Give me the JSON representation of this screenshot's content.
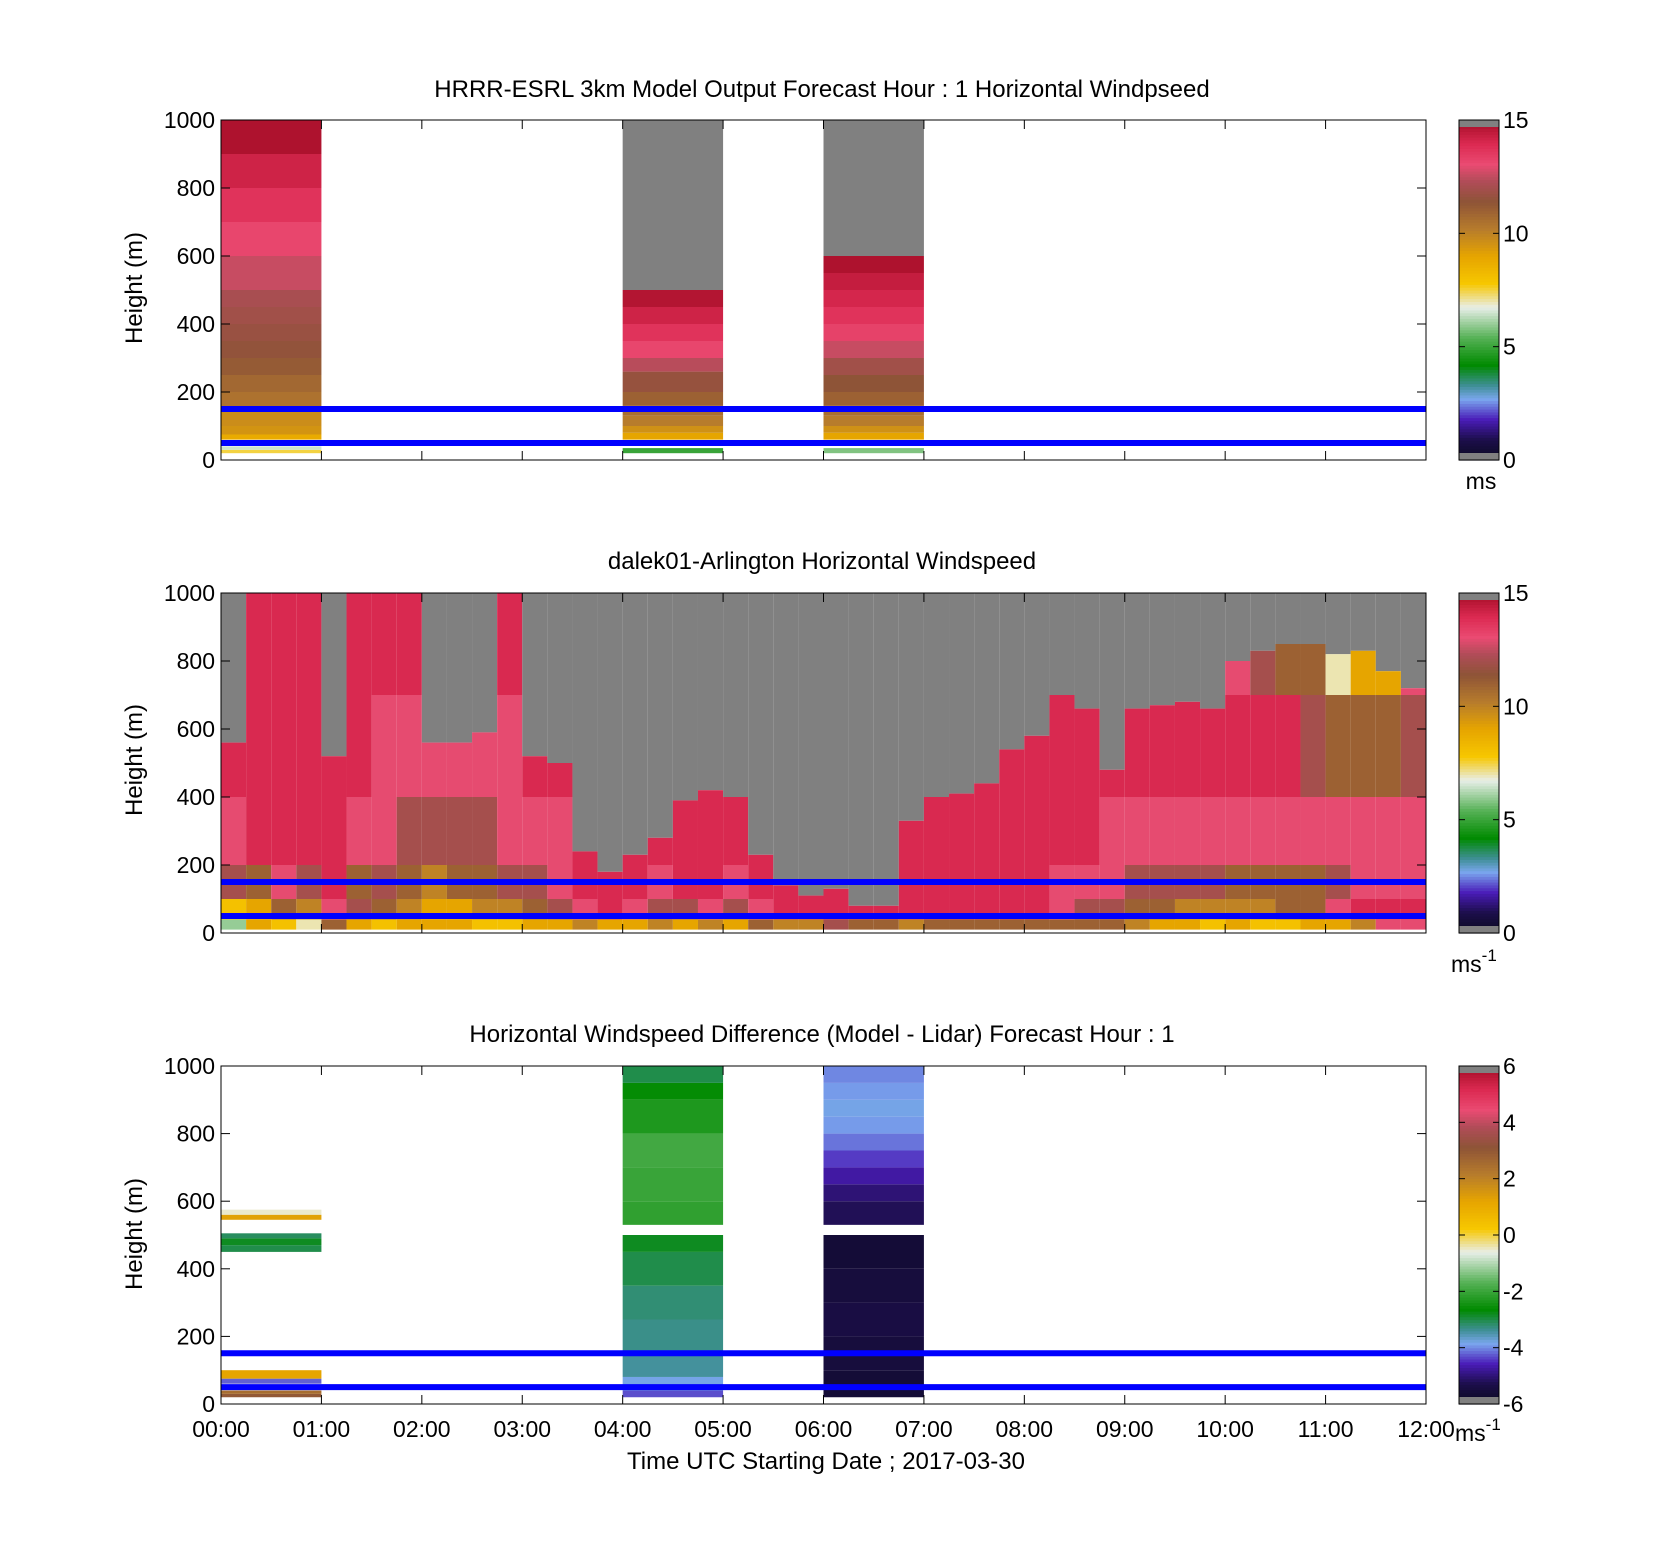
{
  "figure": {
    "xlabel": "Time UTC  Starting Date ; 2017-03-30",
    "x_ticks": [
      "00:00",
      "01:00",
      "02:00",
      "03:00",
      "04:00",
      "05:00",
      "06:00",
      "07:00",
      "08:00",
      "09:00",
      "10:00",
      "11:00",
      "12:00"
    ],
    "missing_color": "#808080",
    "overlay_line_color": "#0000ff"
  },
  "chart_data": [
    {
      "type": "heatmap",
      "title": "HRRR-ESRL 3km Model Output   Forecast Hour : 1 Horizontal Windpseed",
      "ylabel": "Height (m)",
      "y_ticks": [
        "0",
        "200",
        "400",
        "600",
        "800",
        "1000"
      ],
      "xlim_hours": [
        0,
        12
      ],
      "ylim": [
        0,
        1000
      ],
      "colorbar": {
        "ticks": [
          "0",
          "5",
          "10",
          "15"
        ],
        "range": [
          0,
          15
        ],
        "unit": "ms"
      },
      "overlay_lines_m": [
        50,
        150
      ],
      "columns": [
        {
          "start_hour": 0,
          "end_hour": 1,
          "levels": [
            {
              "bottom": 20,
              "top": 30,
              "value": 7.5
            },
            {
              "bottom": 30,
              "top": 40,
              "value": 6.5
            },
            {
              "bottom": 60,
              "top": 75,
              "value": 8.8
            },
            {
              "bottom": 75,
              "top": 100,
              "value": 9.5
            },
            {
              "bottom": 100,
              "top": 150,
              "value": 9.7
            },
            {
              "bottom": 150,
              "top": 200,
              "value": 10.5
            },
            {
              "bottom": 200,
              "top": 250,
              "value": 10.8
            },
            {
              "bottom": 250,
              "top": 300,
              "value": 11.2
            },
            {
              "bottom": 300,
              "top": 350,
              "value": 11.5
            },
            {
              "bottom": 350,
              "top": 400,
              "value": 11.7
            },
            {
              "bottom": 400,
              "top": 450,
              "value": 11.9
            },
            {
              "bottom": 450,
              "top": 500,
              "value": 12.1
            },
            {
              "bottom": 500,
              "top": 600,
              "value": 12.6
            },
            {
              "bottom": 600,
              "top": 700,
              "value": 13.2
            },
            {
              "bottom": 700,
              "top": 800,
              "value": 13.7
            },
            {
              "bottom": 800,
              "top": 900,
              "value": 14.2
            },
            {
              "bottom": 900,
              "top": 1000,
              "value": 14.8
            }
          ]
        },
        {
          "start_hour": 4,
          "end_hour": 5,
          "levels": [
            {
              "bottom": 20,
              "top": 35,
              "value": 5.0
            },
            {
              "bottom": 60,
              "top": 80,
              "value": 9.0
            },
            {
              "bottom": 80,
              "top": 100,
              "value": 9.6
            },
            {
              "bottom": 100,
              "top": 130,
              "value": 10.2
            },
            {
              "bottom": 130,
              "top": 160,
              "value": 10.6
            },
            {
              "bottom": 160,
              "top": 200,
              "value": 11.0
            },
            {
              "bottom": 200,
              "top": 260,
              "value": 11.6
            },
            {
              "bottom": 260,
              "top": 300,
              "value": 12.4
            },
            {
              "bottom": 300,
              "top": 350,
              "value": 13.2
            },
            {
              "bottom": 350,
              "top": 400,
              "value": 13.7
            },
            {
              "bottom": 400,
              "top": 450,
              "value": 14.2
            },
            {
              "bottom": 450,
              "top": 500,
              "value": 14.7
            },
            {
              "bottom": 500,
              "top": 1000,
              "value": null
            }
          ]
        },
        {
          "start_hour": 6,
          "end_hour": 7,
          "levels": [
            {
              "bottom": 20,
              "top": 35,
              "value": 5.8
            },
            {
              "bottom": 60,
              "top": 80,
              "value": 9.0
            },
            {
              "bottom": 80,
              "top": 100,
              "value": 9.6
            },
            {
              "bottom": 100,
              "top": 130,
              "value": 10.2
            },
            {
              "bottom": 130,
              "top": 160,
              "value": 10.6
            },
            {
              "bottom": 160,
              "top": 200,
              "value": 11.0
            },
            {
              "bottom": 200,
              "top": 250,
              "value": 11.4
            },
            {
              "bottom": 250,
              "top": 300,
              "value": 11.9
            },
            {
              "bottom": 300,
              "top": 350,
              "value": 12.6
            },
            {
              "bottom": 350,
              "top": 400,
              "value": 13.3
            },
            {
              "bottom": 400,
              "top": 450,
              "value": 13.7
            },
            {
              "bottom": 450,
              "top": 500,
              "value": 14.1
            },
            {
              "bottom": 500,
              "top": 550,
              "value": 14.4
            },
            {
              "bottom": 550,
              "top": 600,
              "value": 14.8
            },
            {
              "bottom": 600,
              "top": 1000,
              "value": null
            }
          ]
        }
      ]
    },
    {
      "type": "heatmap",
      "title": "dalek01-Arlington  Horizontal Windspeed",
      "ylabel": "Height (m)",
      "y_ticks": [
        "0",
        "200",
        "400",
        "600",
        "800",
        "1000"
      ],
      "xlim_hours": [
        0,
        12
      ],
      "ylim": [
        0,
        1000
      ],
      "colorbar": {
        "ticks": [
          "0",
          "5",
          "10",
          "15"
        ],
        "range": [
          0,
          15
        ],
        "unit": "ms",
        "unit_exp": "-1"
      },
      "overlay_lines_m": [
        50,
        150
      ],
      "column_width_hours": 0.25,
      "profile_tops_m": [
        560,
        1000,
        1000,
        1000,
        520,
        1000,
        1000,
        1000,
        560,
        560,
        590,
        1000,
        520,
        500,
        240,
        180,
        230,
        280,
        390,
        420,
        400,
        230,
        140,
        110,
        130,
        80,
        80,
        330,
        400,
        410,
        440,
        540,
        580,
        700,
        660,
        480,
        660,
        670,
        680,
        660,
        800,
        830,
        850,
        850,
        820,
        830,
        770,
        720
      ],
      "profile_rows": [
        {
          "max_height_m": 40,
          "values": [
            6,
            9,
            8,
            7,
            11,
            9,
            8,
            9,
            9,
            9,
            8,
            8,
            9,
            9,
            10,
            9,
            9,
            10,
            9,
            10,
            9,
            11,
            10,
            10,
            12,
            11,
            11,
            10,
            11,
            11,
            11,
            11,
            11,
            11,
            11,
            11,
            10,
            9,
            9,
            8,
            9,
            8,
            8,
            9,
            9,
            10,
            13,
            13
          ]
        },
        {
          "max_height_m": 100,
          "values": [
            8,
            9,
            11,
            10,
            13,
            12,
            11,
            10,
            9,
            9,
            10,
            10,
            11,
            12,
            13,
            14,
            13,
            12,
            12,
            13,
            12,
            13,
            14,
            14,
            14,
            14,
            14,
            14,
            14,
            14,
            14,
            14,
            14,
            13,
            12,
            12,
            11,
            11,
            10,
            10,
            10,
            10,
            11,
            11,
            13,
            14,
            14,
            14
          ]
        },
        {
          "max_height_m": 200,
          "values": [
            12,
            11,
            13,
            12,
            14,
            11,
            12,
            11,
            10,
            11,
            11,
            12,
            12,
            13,
            14,
            14,
            14,
            13,
            14,
            14,
            13,
            14,
            14,
            14,
            14,
            14,
            14,
            14,
            14,
            14,
            14,
            14,
            14,
            13,
            13,
            13,
            12,
            12,
            12,
            12,
            11,
            11,
            11,
            11,
            12,
            13,
            13,
            13
          ]
        },
        {
          "max_height_m": 400,
          "values": [
            13,
            14,
            14,
            14,
            14,
            13,
            13,
            12,
            12,
            12,
            12,
            13,
            13,
            13,
            14,
            14,
            14,
            14,
            14,
            14,
            14,
            14,
            14,
            14,
            14,
            14,
            14,
            14,
            14,
            14,
            14,
            14,
            14,
            14,
            14,
            13,
            13,
            13,
            13,
            13,
            13,
            13,
            13,
            13,
            13,
            13,
            13,
            13
          ]
        },
        {
          "max_height_m": 700,
          "values": [
            14,
            14,
            14,
            14,
            14,
            14,
            13,
            13,
            13,
            13,
            13,
            13,
            14,
            14,
            14,
            14,
            14,
            14,
            14,
            14,
            14,
            14,
            14,
            14,
            14,
            14,
            14,
            14,
            14,
            14,
            14,
            14,
            14,
            14,
            14,
            14,
            14,
            14,
            14,
            14,
            14,
            14,
            14,
            12,
            11,
            11,
            11,
            12
          ]
        },
        {
          "max_height_m": 1000,
          "values": [
            14,
            14,
            14,
            14,
            14,
            14,
            14,
            14,
            14,
            14,
            14,
            14,
            14,
            14,
            14,
            14,
            14,
            14,
            14,
            14,
            14,
            14,
            14,
            14,
            14,
            14,
            14,
            14,
            14,
            14,
            14,
            14,
            14,
            14,
            14,
            14,
            14,
            14,
            14,
            14,
            13,
            12,
            11,
            11,
            7,
            9,
            9,
            13
          ]
        }
      ]
    },
    {
      "type": "heatmap",
      "title": "Horizontal Windspeed Difference (Model - Lidar) Forecast Hour : 1",
      "ylabel": "Height (m)",
      "y_ticks": [
        "0",
        "200",
        "400",
        "600",
        "800",
        "1000"
      ],
      "xlim_hours": [
        0,
        12
      ],
      "ylim": [
        0,
        1000
      ],
      "colorbar": {
        "ticks": [
          "-6",
          "-4",
          "-2",
          "0",
          "2",
          "4",
          "6"
        ],
        "range": [
          -6,
          6
        ],
        "unit": "ms",
        "unit_exp": "-1"
      },
      "overlay_lines_m": [
        50,
        150
      ],
      "columns": [
        {
          "start_hour": 0,
          "end_hour": 1,
          "levels": [
            {
              "bottom": 20,
              "top": 30,
              "value": 3.0
            },
            {
              "bottom": 30,
              "top": 40,
              "value": 2.5
            },
            {
              "bottom": 60,
              "top": 75,
              "value": -4.2
            },
            {
              "bottom": 75,
              "top": 100,
              "value": 1.2
            },
            {
              "bottom": 450,
              "top": 470,
              "value": -3.0
            },
            {
              "bottom": 470,
              "top": 490,
              "value": -2.8
            },
            {
              "bottom": 490,
              "top": 505,
              "value": -3.1
            },
            {
              "bottom": 545,
              "top": 560,
              "value": 1.3
            },
            {
              "bottom": 560,
              "top": 575,
              "value": -0.5
            }
          ]
        },
        {
          "start_hour": 4,
          "end_hour": 5,
          "levels": [
            {
              "bottom": 20,
              "top": 40,
              "value": -4.3
            },
            {
              "bottom": 40,
              "top": 80,
              "value": -3.8
            },
            {
              "bottom": 80,
              "top": 150,
              "value": -3.4
            },
            {
              "bottom": 150,
              "top": 250,
              "value": -3.3
            },
            {
              "bottom": 250,
              "top": 350,
              "value": -3.2
            },
            {
              "bottom": 350,
              "top": 450,
              "value": -3.0
            },
            {
              "bottom": 450,
              "top": 500,
              "value": -2.8
            },
            {
              "bottom": 530,
              "top": 600,
              "value": -2.1
            },
            {
              "bottom": 600,
              "top": 700,
              "value": -2.0
            },
            {
              "bottom": 700,
              "top": 800,
              "value": -1.9
            },
            {
              "bottom": 800,
              "top": 900,
              "value": -2.3
            },
            {
              "bottom": 900,
              "top": 950,
              "value": -2.6
            },
            {
              "bottom": 950,
              "top": 1000,
              "value": -3.0
            }
          ]
        },
        {
          "start_hour": 6,
          "end_hour": 7,
          "levels": [
            {
              "bottom": 20,
              "top": 100,
              "value": -5.6
            },
            {
              "bottom": 100,
              "top": 200,
              "value": -5.5
            },
            {
              "bottom": 200,
              "top": 300,
              "value": -5.4
            },
            {
              "bottom": 300,
              "top": 400,
              "value": -5.5
            },
            {
              "bottom": 400,
              "top": 500,
              "value": -5.6
            },
            {
              "bottom": 530,
              "top": 600,
              "value": -5.2
            },
            {
              "bottom": 600,
              "top": 650,
              "value": -5.0
            },
            {
              "bottom": 650,
              "top": 700,
              "value": -4.7
            },
            {
              "bottom": 700,
              "top": 750,
              "value": -4.4
            },
            {
              "bottom": 750,
              "top": 800,
              "value": -4.1
            },
            {
              "bottom": 800,
              "top": 850,
              "value": -3.9
            },
            {
              "bottom": 850,
              "top": 900,
              "value": -3.8
            },
            {
              "bottom": 900,
              "top": 950,
              "value": -3.9
            },
            {
              "bottom": 950,
              "top": 1000,
              "value": -4.0
            }
          ]
        }
      ]
    }
  ]
}
